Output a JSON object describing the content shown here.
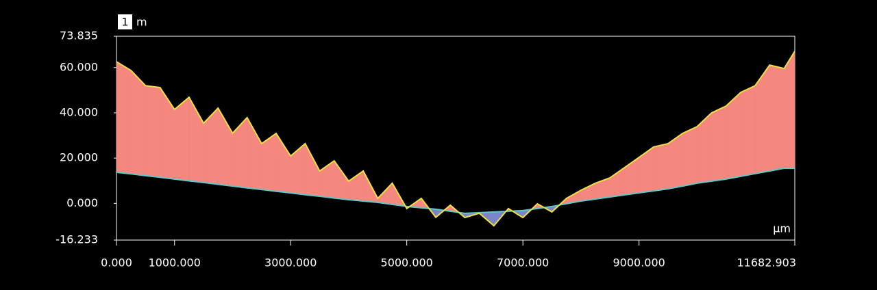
{
  "chart_data": {
    "type": "profile",
    "badge": "1",
    "unit_label": "m",
    "x_unit": "µm",
    "xlim": [
      0,
      11682.903
    ],
    "ylim": [
      -16.233,
      73.835
    ],
    "xticks": [
      {
        "value": 0,
        "label": "0.000"
      },
      {
        "value": 1000,
        "label": "1000.000"
      },
      {
        "value": 3000,
        "label": "3000.000"
      },
      {
        "value": 5000,
        "label": "5000.000"
      },
      {
        "value": 7000,
        "label": "7000.000"
      },
      {
        "value": 9000,
        "label": "9000.000"
      },
      {
        "value": 11682.903,
        "label": "11682.903"
      }
    ],
    "yticks": [
      {
        "value": -16.233,
        "label": "-16.233"
      },
      {
        "value": 0,
        "label": "0.000"
      },
      {
        "value": 20,
        "label": "20.000"
      },
      {
        "value": 40,
        "label": "40.000"
      },
      {
        "value": 60,
        "label": "60.000"
      },
      {
        "value": 73.835,
        "label": "73.835"
      }
    ],
    "x": [
      0,
      250,
      500,
      750,
      1000,
      1250,
      1500,
      1750,
      2000,
      2250,
      2500,
      2750,
      3000,
      3250,
      3500,
      3750,
      4000,
      4250,
      4500,
      4750,
      5000,
      5250,
      5500,
      5750,
      6000,
      6250,
      6500,
      6750,
      7000,
      7250,
      7500,
      7750,
      8000,
      8250,
      8500,
      8750,
      9000,
      9250,
      9500,
      9750,
      10000,
      10250,
      10500,
      10750,
      11000,
      11250,
      11500,
      11682.903
    ],
    "fill_above": "#f4877e",
    "fill_below": "#7b86c8",
    "series": [
      {
        "color": "#f0e040",
        "values": [
          62.6,
          58.7,
          52,
          51.2,
          41.5,
          46.9,
          35.4,
          42.1,
          31,
          37.9,
          26.4,
          30.9,
          20.9,
          26.4,
          14.3,
          18.8,
          9.8,
          14.3,
          2.2,
          8.9,
          -2.3,
          2.2,
          -6.2,
          -0.8,
          -6.3,
          -4.4,
          -9.9,
          -2.3,
          -6.3,
          -0.2,
          -3.8,
          2.2,
          5.8,
          8.9,
          11.3,
          15.8,
          20.3,
          24.9,
          26.4,
          30.9,
          33.9,
          40,
          43,
          49,
          52,
          61.1,
          59.6,
          67.2
        ]
      },
      {
        "color": "#5fc8c8",
        "values": [
          13.7,
          13,
          12.2,
          11.5,
          10.7,
          9.9,
          9.2,
          8.4,
          7.6,
          6.8,
          6.1,
          5.3,
          4.6,
          3.8,
          3.1,
          2.3,
          1.6,
          1,
          0.4,
          -0.5,
          -1.4,
          -2,
          -2.6,
          -3.5,
          -4.4,
          -4.1,
          -3.8,
          -3.5,
          -3.2,
          -2.3,
          -1.4,
          -0.2,
          1,
          1.9,
          2.8,
          3.7,
          4.6,
          5.5,
          6.4,
          7.6,
          8.9,
          9.8,
          10.7,
          11.9,
          13.1,
          14.3,
          15.5,
          15.5
        ]
      }
    ]
  }
}
